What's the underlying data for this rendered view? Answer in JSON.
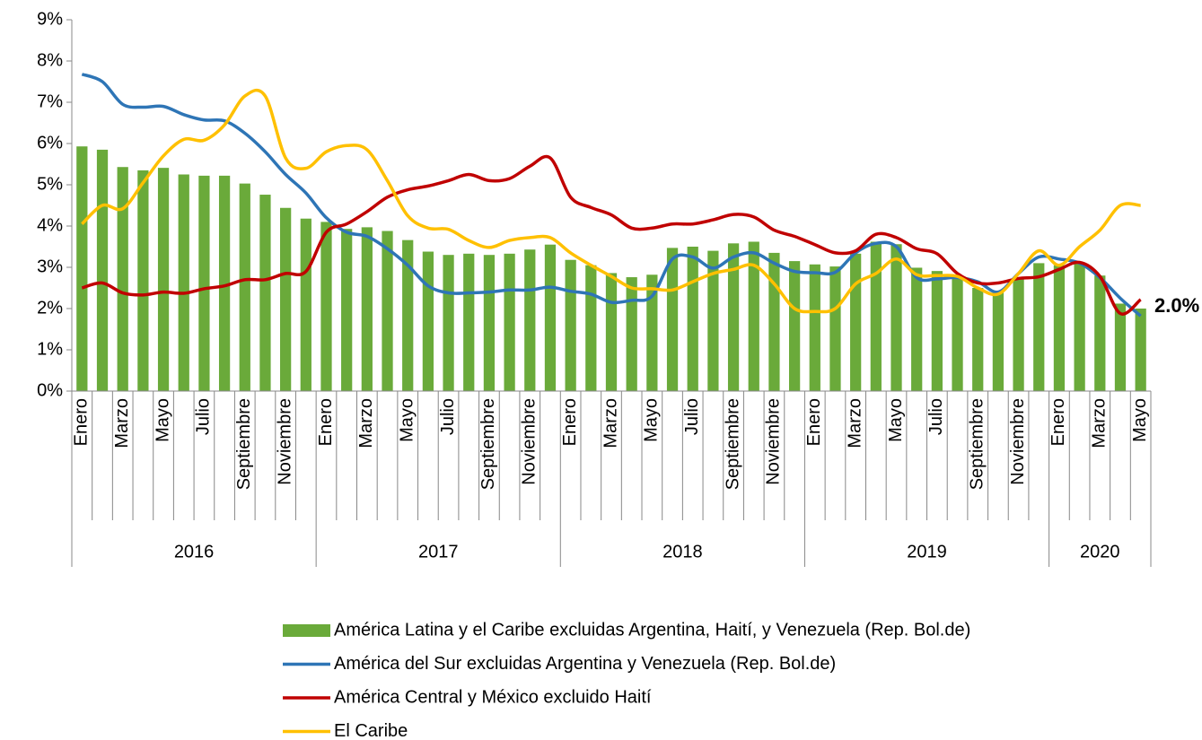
{
  "chart_data": {
    "type": "bar-line",
    "categories": [
      "Enero",
      null,
      "Marzo",
      null,
      "Mayo",
      null,
      "Julio",
      null,
      "Septiembre",
      null,
      "Noviembre",
      null,
      "Enero",
      null,
      "Marzo",
      null,
      "Mayo",
      null,
      "Julio",
      null,
      "Septiembre",
      null,
      "Noviembre",
      null,
      "Enero",
      null,
      "Marzo",
      null,
      "Mayo",
      null,
      "Julio",
      null,
      "Septiembre",
      null,
      "Noviembre",
      null,
      "Enero",
      null,
      "Marzo",
      null,
      "Mayo",
      null,
      "Julio",
      null,
      "Septiembre",
      null,
      "Noviembre",
      null,
      "Enero",
      null,
      "Marzo",
      null,
      "Mayo"
    ],
    "groups": [
      "2016",
      "2017",
      "2018",
      "2019",
      "2020"
    ],
    "series": [
      {
        "name": "América Latina y el Caribe excluidas Argentina, Haití, y Venezuela (Rep. Bol.de)",
        "kind": "bar",
        "color": "#6aaa3a",
        "values": [
          5.93,
          5.85,
          5.43,
          5.35,
          5.41,
          5.25,
          5.22,
          5.22,
          5.03,
          4.76,
          4.44,
          4.18,
          4.1,
          3.93,
          3.97,
          3.88,
          3.66,
          3.38,
          3.3,
          3.33,
          3.3,
          3.33,
          3.43,
          3.55,
          3.18,
          3.05,
          2.86,
          2.76,
          2.82,
          3.47,
          3.5,
          3.4,
          3.58,
          3.62,
          3.35,
          3.15,
          3.07,
          3.02,
          3.33,
          3.62,
          3.56,
          2.99,
          2.91,
          2.8,
          2.5,
          2.42,
          2.73,
          3.1,
          3.05,
          3.1,
          2.8,
          2.12,
          2.0
        ],
        "value_labels": [
          null,
          null,
          null,
          null,
          null,
          null,
          null,
          null,
          null,
          null,
          null,
          null,
          null,
          null,
          null,
          null,
          null,
          null,
          null,
          null,
          null,
          null,
          null,
          null,
          null,
          null,
          null,
          null,
          null,
          null,
          null,
          null,
          null,
          null,
          null,
          null,
          null,
          null,
          null,
          null,
          null,
          null,
          null,
          null,
          null,
          null,
          null,
          null,
          null,
          null,
          null,
          null,
          "2.0%"
        ]
      },
      {
        "name": "América del Sur excluidas Argentina y Venezuela (Rep. Bol.de)",
        "kind": "line",
        "color": "#2e75b6",
        "values": [
          7.68,
          7.5,
          6.95,
          6.88,
          6.9,
          6.7,
          6.57,
          6.55,
          6.25,
          5.8,
          5.25,
          4.8,
          4.2,
          3.85,
          3.75,
          3.45,
          3.05,
          2.55,
          2.38,
          2.38,
          2.4,
          2.45,
          2.45,
          2.52,
          2.42,
          2.35,
          2.15,
          2.2,
          2.3,
          3.2,
          3.25,
          2.98,
          3.25,
          3.35,
          3.1,
          2.9,
          2.87,
          2.88,
          3.35,
          3.58,
          3.5,
          2.75,
          2.72,
          2.75,
          2.65,
          2.4,
          2.85,
          3.25,
          3.2,
          3.1,
          2.75,
          2.25,
          1.82
        ]
      },
      {
        "name": "América Central y México excluido Haití",
        "kind": "line",
        "color": "#c00000",
        "values": [
          2.5,
          2.62,
          2.38,
          2.33,
          2.4,
          2.37,
          2.48,
          2.55,
          2.7,
          2.7,
          2.85,
          2.9,
          3.85,
          4.05,
          4.35,
          4.7,
          4.88,
          4.97,
          5.1,
          5.25,
          5.1,
          5.15,
          5.45,
          5.65,
          4.7,
          4.45,
          4.27,
          3.95,
          3.95,
          4.05,
          4.05,
          4.15,
          4.28,
          4.22,
          3.9,
          3.75,
          3.55,
          3.35,
          3.4,
          3.8,
          3.72,
          3.45,
          3.33,
          2.85,
          2.62,
          2.62,
          2.73,
          2.77,
          2.95,
          3.12,
          2.78,
          1.88,
          2.22
        ]
      },
      {
        "name": "El Caribe",
        "kind": "line",
        "color": "#ffc000",
        "values": [
          4.05,
          4.5,
          4.42,
          5.05,
          5.7,
          6.1,
          6.08,
          6.45,
          7.15,
          7.15,
          5.65,
          5.4,
          5.8,
          5.95,
          5.85,
          5.1,
          4.25,
          3.95,
          3.92,
          3.65,
          3.48,
          3.65,
          3.72,
          3.72,
          3.35,
          3.05,
          2.78,
          2.5,
          2.48,
          2.45,
          2.65,
          2.85,
          2.95,
          3.05,
          2.6,
          2.0,
          1.93,
          2.0,
          2.6,
          2.85,
          3.2,
          2.82,
          2.8,
          2.78,
          2.5,
          2.35,
          2.85,
          3.4,
          3.05,
          3.5,
          3.9,
          4.5,
          4.5
        ]
      }
    ],
    "ylim": [
      0,
      9
    ],
    "yticks": [
      {
        "value": 0,
        "label": "0%"
      },
      {
        "value": 1,
        "label": "1%"
      },
      {
        "value": 2,
        "label": "2%"
      },
      {
        "value": 3,
        "label": "3%"
      },
      {
        "value": 4,
        "label": "4%"
      },
      {
        "value": 5,
        "label": "5%"
      },
      {
        "value": 6,
        "label": "6%"
      },
      {
        "value": 7,
        "label": "7%"
      },
      {
        "value": 8,
        "label": "8%"
      },
      {
        "value": 9,
        "label": "9%"
      }
    ],
    "grid": false,
    "legend": "bottom"
  }
}
